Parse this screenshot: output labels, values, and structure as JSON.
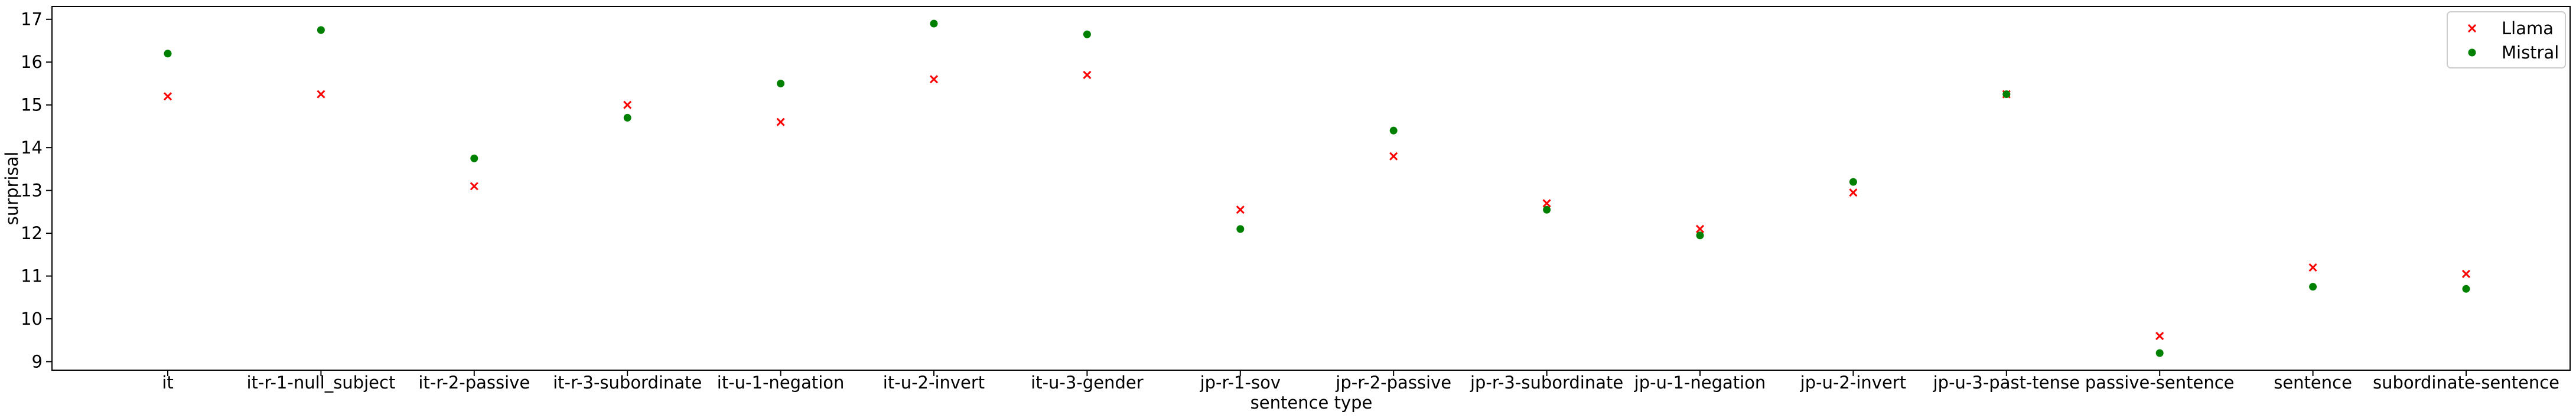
{
  "chart_data": {
    "type": "scatter",
    "title": "",
    "xlabel": "sentence type",
    "ylabel": "surprisal",
    "ylim": [
      8.8,
      17.3
    ],
    "yticks": [
      9,
      10,
      11,
      12,
      13,
      14,
      15,
      16,
      17
    ],
    "categories": [
      "it",
      "it-r-1-null_subject",
      "it-r-2-passive",
      "it-r-3-subordinate",
      "it-u-1-negation",
      "it-u-2-invert",
      "it-u-3-gender",
      "jp-r-1-sov",
      "jp-r-2-passive",
      "jp-r-3-subordinate",
      "jp-u-1-negation",
      "jp-u-2-invert",
      "jp-u-3-past-tense",
      "passive-sentence",
      "sentence",
      "subordinate-sentence"
    ],
    "series": [
      {
        "name": "Llama",
        "marker": "x",
        "color": "#ff0000",
        "values": [
          15.2,
          15.25,
          13.1,
          15.0,
          14.6,
          15.6,
          15.7,
          12.55,
          13.8,
          12.7,
          12.1,
          12.95,
          15.25,
          9.6,
          11.2,
          11.05
        ]
      },
      {
        "name": "Mistral",
        "marker": "o",
        "color": "#008000",
        "values": [
          16.2,
          16.75,
          13.75,
          14.7,
          15.5,
          16.9,
          16.65,
          12.1,
          14.4,
          12.55,
          11.95,
          13.2,
          15.25,
          9.2,
          10.75,
          10.7
        ]
      }
    ],
    "legend_position": "top-right",
    "grid": false
  }
}
